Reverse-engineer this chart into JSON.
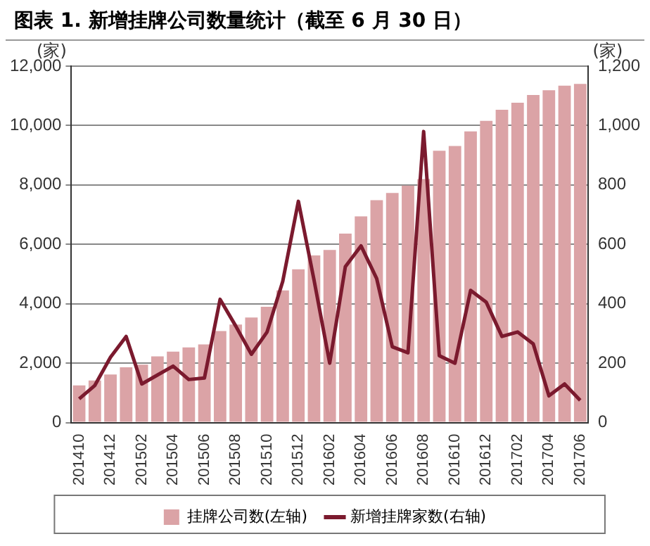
{
  "chart_data": {
    "type": "bar",
    "title": "图表 1. 新增挂牌公司数量统计（截至 6 月 30 日）",
    "ylabel": "(家)",
    "y2label": "(家)",
    "categories": [
      "201410",
      null,
      "201412",
      null,
      "201502",
      null,
      "201504",
      null,
      "201506",
      null,
      "201508",
      null,
      "201510",
      null,
      "201512",
      null,
      "201602",
      null,
      "201604",
      null,
      "201606",
      null,
      "201608",
      null,
      "201610",
      null,
      "201612",
      null,
      "201702",
      null,
      "201704",
      null,
      "201706"
    ],
    "series": [
      {
        "name": "挂牌公司数(左轴)",
        "color": "#dba3a6",
        "values": [
          1250,
          1420,
          1620,
          1860,
          1950,
          2230,
          2390,
          2530,
          2630,
          3080,
          3300,
          3540,
          3900,
          4450,
          5160,
          5630,
          5810,
          6360,
          6940,
          7490,
          7730,
          7980,
          8200,
          9150,
          9310,
          9800,
          10160,
          10530,
          10770,
          11030,
          11190,
          11340,
          11400
        ]
      },
      {
        "name": "新增挂牌家数(右轴)",
        "type": "line",
        "axis": "y2",
        "color": "#7b1a2e",
        "values": [
          80,
          125,
          220,
          290,
          130,
          160,
          190,
          145,
          150,
          415,
          325,
          230,
          305,
          475,
          745,
          480,
          200,
          525,
          595,
          485,
          255,
          235,
          980,
          225,
          200,
          445,
          405,
          290,
          305,
          265,
          90,
          130,
          75
        ]
      }
    ],
    "ylim": [
      0,
      12000
    ],
    "yticks": [
      {
        "value": 0,
        "label": "0"
      },
      {
        "value": 2000,
        "label": "2,000"
      },
      {
        "value": 4000,
        "label": "4,000"
      },
      {
        "value": 6000,
        "label": "6,000"
      },
      {
        "value": 8000,
        "label": "8,000"
      },
      {
        "value": 10000,
        "label": "10,000"
      },
      {
        "value": 12000,
        "label": "12,000"
      }
    ],
    "y2lim": [
      0,
      1200
    ],
    "y2ticks": [
      {
        "value": 0,
        "label": "0"
      },
      {
        "value": 200,
        "label": "200"
      },
      {
        "value": 400,
        "label": "400"
      },
      {
        "value": 600,
        "label": "600"
      },
      {
        "value": 800,
        "label": "800"
      },
      {
        "value": 1000,
        "label": "1,000"
      },
      {
        "value": 1200,
        "label": "1,200"
      }
    ],
    "grid": "y",
    "legend": "bottom",
    "marker": "none"
  }
}
